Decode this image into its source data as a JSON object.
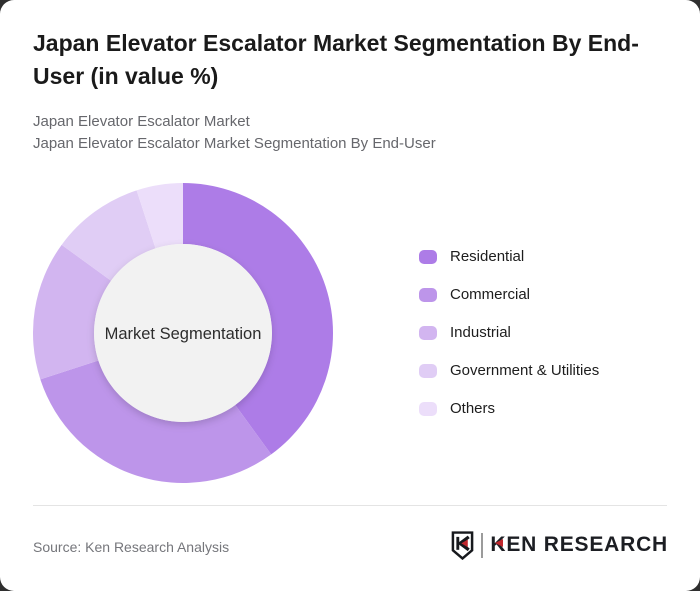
{
  "page": {
    "backdrop_color": "#2f2f2f",
    "card_color": "#ffffff"
  },
  "header": {
    "title": "Japan Elevator Escalator Market Segmentation By End-User (in value %)",
    "subtitle_line1": "Japan Elevator Escalator Market",
    "subtitle_line2": "Japan Elevator Escalator Market Segmentation By End-User"
  },
  "chart_data": {
    "type": "pie",
    "subtype": "donut",
    "title": "Japan Elevator Escalator Market Segmentation By End-User (in value %)",
    "unit": "value %",
    "center_label": "Market Segmentation",
    "labels": [
      "Residential",
      "Commercial",
      "Industrial",
      "Government & Utilities",
      "Others"
    ],
    "values": [
      40,
      30,
      15,
      10,
      5
    ],
    "colors": [
      "#ad7ce7",
      "#bd95ea",
      "#d2b5f0",
      "#e0cdf5",
      "#ecdefa"
    ],
    "hole_color": "#f2f2f2",
    "start_angle_deg": 0,
    "direction": "clockwise",
    "inner_radius_ratio": 0.593,
    "legend_position": "right",
    "data_labels_shown": false
  },
  "footer": {
    "source": "Source: Ken Research Analysis",
    "logo": {
      "k": "K",
      "rest": "EN RESEARCH"
    }
  },
  "brand": {
    "red": "#c0272d",
    "dark": "#17191d"
  }
}
